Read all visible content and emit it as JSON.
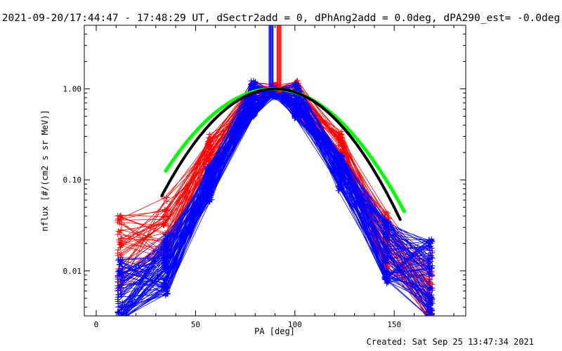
{
  "title": "2021-09-20/17:44:47 - 17:48:29 UT, dSectr2add = 0, dPhAng2add = 0.0deg, dPA290_est= -0.0deg",
  "footer": "Created: Sat Sep 25 13:47:34 2021",
  "colors": {
    "red_series": "#ff0000",
    "blue_series": "#0000ff",
    "fit_green": "#00ff00",
    "fit_black": "#000000"
  },
  "chart_data": {
    "type": "line",
    "xlabel": "PA [deg]",
    "ylabel": "nflux [#/(cm2 s sr MeV)]",
    "xlim": [
      -6,
      186
    ],
    "ylim": [
      0.0032,
      5.0
    ],
    "yscale": "log",
    "x_ticks": [
      0,
      50,
      100,
      150
    ],
    "x_tick_labels": [
      "0",
      "50",
      "100",
      "150"
    ],
    "y_ticks": [
      0.01,
      0.1,
      1.0
    ],
    "y_tick_labels": [
      "0.01",
      "0.10",
      "1.00"
    ],
    "pa_bins": [
      12,
      35,
      57,
      79,
      90,
      101,
      123,
      146,
      168
    ],
    "series": [
      {
        "color": "red",
        "count": 45,
        "representative_values": [
          0.015,
          0.03,
          0.2,
          0.8,
          1.0,
          0.8,
          0.22,
          0.02,
          0.006
        ]
      },
      {
        "color": "blue",
        "count": 90,
        "representative_values": [
          0.005,
          0.012,
          0.09,
          0.78,
          0.9,
          0.75,
          0.12,
          0.016,
          0.008
        ]
      },
      {
        "color": "blue",
        "note_x": 88,
        "values_range": [
          0.9,
          5.0
        ]
      },
      {
        "color": "red",
        "note_x": 92,
        "values_range": [
          0.9,
          5.0
        ]
      }
    ],
    "fits": [
      {
        "color": "green",
        "x_range": [
          35,
          155
        ],
        "peak_x": 89,
        "peak_y": 1.0,
        "sigma": 26.5
      },
      {
        "color": "black",
        "x_range": [
          33,
          153
        ],
        "peak_x": 90,
        "peak_y": 1.0,
        "sigma": 24.5
      }
    ]
  }
}
